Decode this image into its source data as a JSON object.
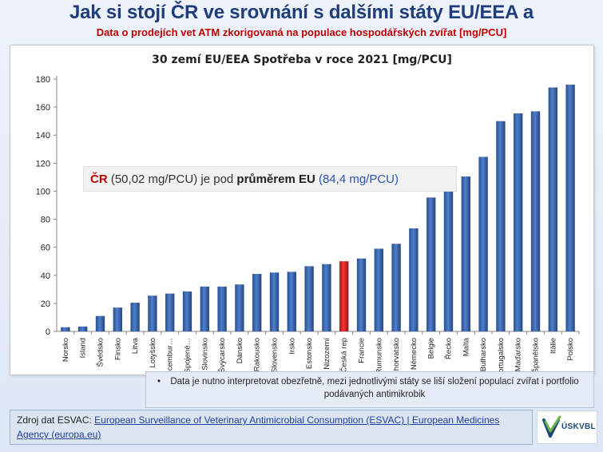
{
  "slide": {
    "title": "Jak si stojí ČR ve srovnání s dalšími státy EU/EEA a",
    "subtitle": "Data o prodejích vet ATM zkorigovaná na populace hospodářských zvířat [mg/PCU]"
  },
  "callout": {
    "cr_label": "ČR",
    "cr_value": "(50,02 mg/PCU) je pod",
    "avg_word": "průměrem EU",
    "avg_value": "(84,4 mg/PCU)"
  },
  "note": {
    "bullet": "•",
    "text": "Data je nutno interpretovat obezřetně, mezi jednotlivými státy se liší složení populací zvířat i portfolio podávaných antimikrobik"
  },
  "source": {
    "prefix": "Zdroj dat  ESVAC:",
    "link_text": "European Surveillance of Veterinary Antimicrobial Consumption (ESVAC) | European Medicines Agency (europa.eu)"
  },
  "logo": {
    "text": "ÚSKVBL",
    "icon": "check-shield-icon",
    "color_green": "#6bb34a",
    "color_blue": "#1b4a7a"
  },
  "chart_data": {
    "type": "bar",
    "title": "30 zemí EU/EEA Spotřeba v roce 2021 [mg/PCU]",
    "xlabel": "",
    "ylabel": "",
    "ylim": [
      0,
      180
    ],
    "yticks": [
      0,
      20,
      40,
      60,
      80,
      100,
      120,
      140,
      160,
      180
    ],
    "grid": false,
    "bar_color": "#3a66b0",
    "highlight_color": "#e02020",
    "highlight_category": "Česká rep",
    "categories": [
      "Norsko",
      "Island",
      "Švédsko",
      "Finsko",
      "Litva",
      "Lotyšsko",
      "Lucembur…",
      "Spojené…",
      "Slovinsko",
      "Švýcarsko",
      "Dánsko",
      "Rakousko",
      "Slovensko",
      "Irsko",
      "Estonsko",
      "Nizozemí",
      "Česká rep",
      "Francie",
      "Rumunsko",
      "Chorvatsko",
      "Německo",
      "Belgie",
      "Řecko",
      "Malta",
      "Bulharsko",
      "Portugalsko",
      "Maďarsko",
      "Španělsko",
      "Itálie",
      "Polsko"
    ],
    "values": [
      3,
      3.5,
      11,
      17,
      20.5,
      25.5,
      27,
      28.5,
      32,
      32,
      33.5,
      41,
      42,
      42.5,
      46.5,
      48,
      50.02,
      52,
      59,
      62.5,
      73.5,
      95.5,
      109,
      110.5,
      124.5,
      150,
      155.5,
      157,
      174,
      176
    ]
  }
}
